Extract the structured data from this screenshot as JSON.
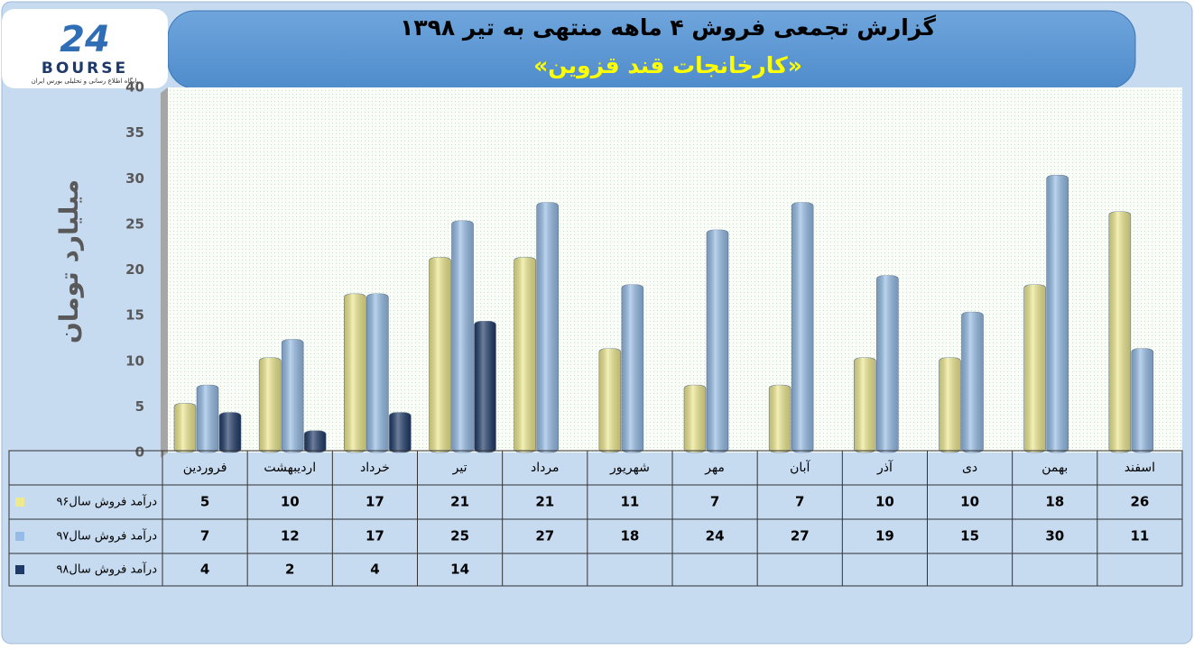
{
  "logo": {
    "number": "24",
    "text": "BOURSE",
    "tagline": "پایگاه اطلاع رسانی و تحلیلی بورس ایران"
  },
  "chart_data": {
    "type": "bar",
    "title": "گزارش تجمعی فروش ۴ ماهه منتهی به تیر ۱۳۹۸",
    "subtitle": "«کارخانجات قند قزوین»",
    "y_label": "میلیارد تومان",
    "categories": [
      "فروردین",
      "اردیبهشت",
      "خرداد",
      "تیر",
      "مرداد",
      "شهریور",
      "مهر",
      "آبان",
      "آذر",
      "دی",
      "بهمن",
      "اسفند"
    ],
    "series": [
      {
        "name": "درآمد فروش سال۹۶",
        "color": "#eee98f",
        "values": [
          5,
          10,
          17,
          21,
          21,
          11,
          7,
          7,
          10,
          10,
          18,
          26
        ]
      },
      {
        "name": "درآمد فروش سال۹۷",
        "color": "#95bce6",
        "values": [
          7,
          12,
          17,
          25,
          27,
          18,
          24,
          27,
          19,
          15,
          30,
          11
        ]
      },
      {
        "name": "درآمد فروش سال۹۸",
        "color": "#1f3a68",
        "values": [
          4,
          2,
          4,
          14,
          null,
          null,
          null,
          null,
          null,
          null,
          null,
          null
        ]
      }
    ],
    "ylim": [
      0,
      40
    ],
    "yticks": [
      0,
      5,
      10,
      15,
      20,
      25,
      30,
      35,
      40
    ],
    "grid": false,
    "data_table": true
  }
}
